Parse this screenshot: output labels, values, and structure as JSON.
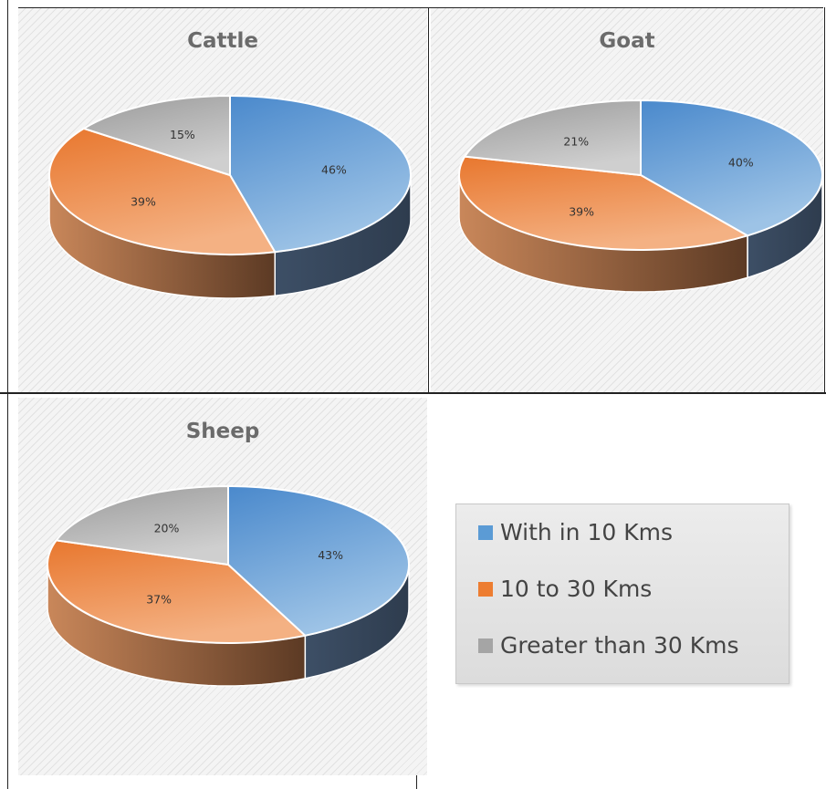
{
  "chart_data": [
    {
      "type": "pie",
      "title": "Cattle",
      "categories": [
        "With in 10 Kms",
        "10 to 30 Kms",
        "Greater than 30 Kms"
      ],
      "values": [
        46,
        39,
        15
      ],
      "labels": [
        "46%",
        "39%",
        "15%"
      ]
    },
    {
      "type": "pie",
      "title": "Goat",
      "categories": [
        "With in 10 Kms",
        "10 to 30 Kms",
        "Greater than 30 Kms"
      ],
      "values": [
        40,
        39,
        21
      ],
      "labels": [
        "40%",
        "39%",
        "21%"
      ]
    },
    {
      "type": "pie",
      "title": "Sheep",
      "categories": [
        "With in 10 Kms",
        "10 to 30 Kms",
        "Greater than 30 Kms"
      ],
      "values": [
        43,
        37,
        20
      ],
      "labels": [
        "43%",
        "37%",
        "20%"
      ]
    }
  ],
  "legend": {
    "items": [
      {
        "label": "With in 10 Kms",
        "color": "#5b9bd5"
      },
      {
        "label": "10 to 30 Kms",
        "color": "#ed7d31"
      },
      {
        "label": "Greater than 30 Kms",
        "color": "#a5a5a5"
      }
    ]
  }
}
